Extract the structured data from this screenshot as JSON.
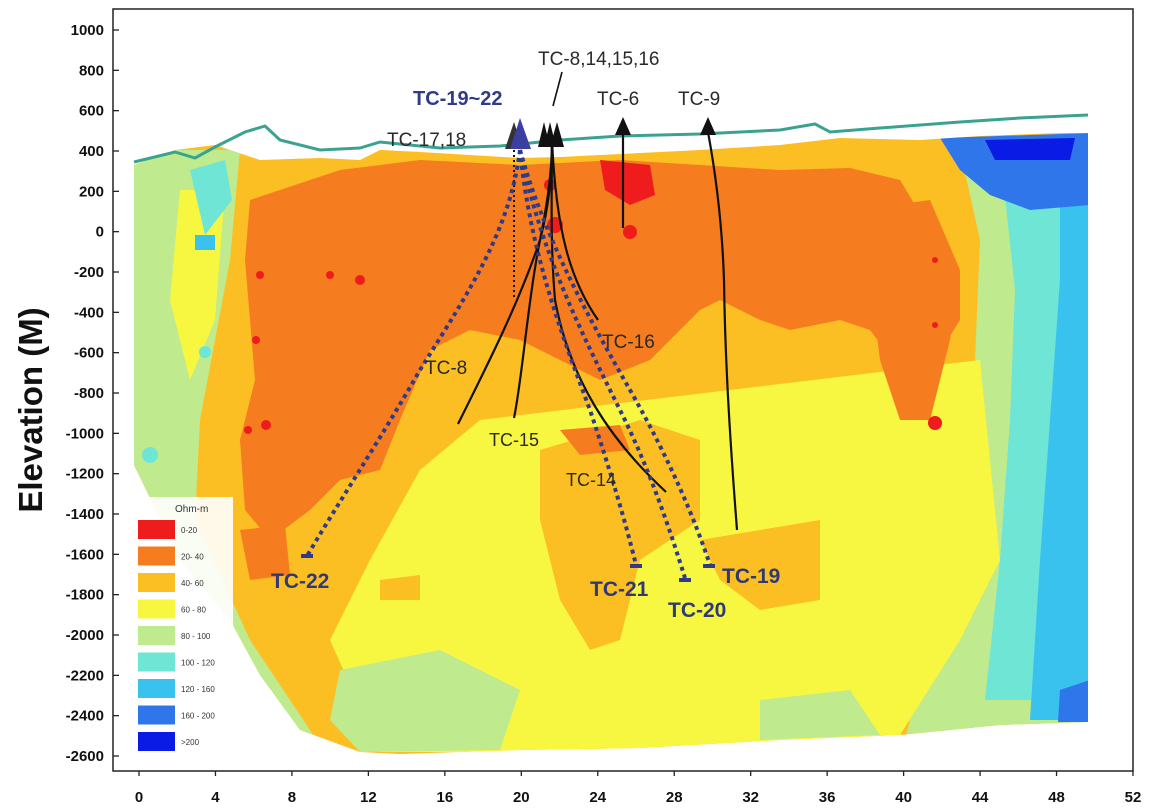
{
  "ylabel": "Elevation (M)",
  "chart_data": {
    "type": "heatmap",
    "ylabel": "Elevation (M)",
    "xlabel": "",
    "x_ticks": [
      "0",
      "4",
      "8",
      "12",
      "16",
      "20",
      "24",
      "28",
      "32",
      "36",
      "40",
      "44",
      "48",
      "52"
    ],
    "y_ticks": [
      "1000",
      "800",
      "600",
      "400",
      "200",
      "0",
      "-200",
      "-400",
      "-600",
      "-800",
      "-1000",
      "-1200",
      "-1400",
      "-1600",
      "-1800",
      "-2000",
      "-2200",
      "-2400",
      "-2600"
    ],
    "xlim": [
      0,
      52
    ],
    "ylim": [
      -2600,
      1000
    ],
    "legend": {
      "title": "Ohm-m",
      "placement": "bottom-left",
      "entries": [
        {
          "label": "0-20",
          "color": "#ee1c1c"
        },
        {
          "label": "20- 40",
          "color": "#f57c1f"
        },
        {
          "label": "40- 60",
          "color": "#fbbf24"
        },
        {
          "label": "60 - 80",
          "color": "#f7f742"
        },
        {
          "label": "80 - 100",
          "color": "#bfea8e"
        },
        {
          "label": "100 - 120",
          "color": "#6fe5d6"
        },
        {
          "label": "120 - 160",
          "color": "#39c2ee"
        },
        {
          "label": "160 - 200",
          "color": "#2f76ea"
        },
        {
          "label": ">200",
          "color": "#0b1be6"
        }
      ]
    }
  },
  "wells": {
    "tc19_22": "TC-19~22",
    "tc8_14_15_16": "TC-8,14,15,16",
    "tc6": "TC-6",
    "tc9": "TC-9",
    "tc17_18": "TC-17,18",
    "tc16": "TC-16",
    "tc8": "TC-8",
    "tc15": "TC-15",
    "tc14": "TC-14",
    "tc22": "TC-22",
    "tc21": "TC-21",
    "tc20": "TC-20",
    "tc19": "TC-19"
  },
  "colors": {
    "topography": "#3aa38f",
    "well_black": "#111111",
    "well_blue": "#2f3a8a"
  }
}
